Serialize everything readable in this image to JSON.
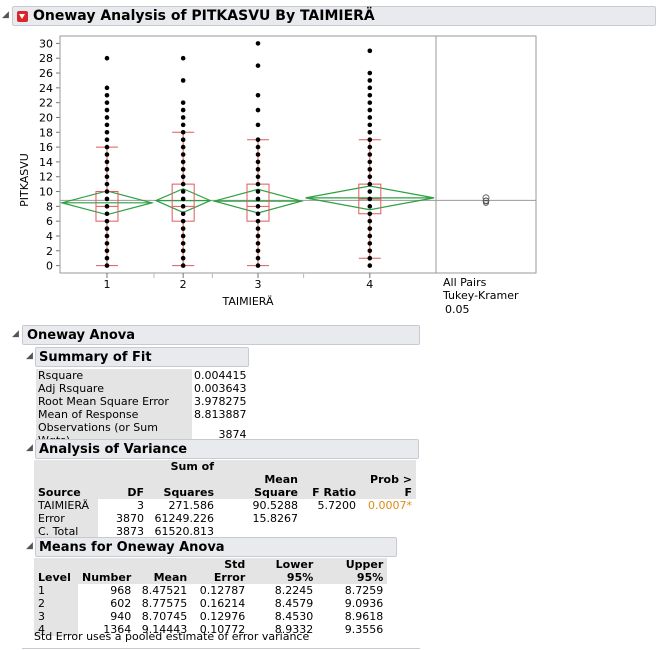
{
  "title": "Oneway Analysis of PITKASVU By TAIMIERÄ",
  "plot": {
    "ylabel": "PITKASVU",
    "xlabel": "TAIMIERÄ",
    "yticks": [
      "0",
      "2",
      "4",
      "6",
      "8",
      "10",
      "12",
      "14",
      "16",
      "18",
      "20",
      "22",
      "24",
      "26",
      "28",
      "30"
    ],
    "xticks": [
      "1",
      "2",
      "3",
      "4"
    ],
    "side_label_1": "All Pairs",
    "side_label_2": "Tukey-Kramer",
    "side_label_3": "0.05"
  },
  "chart_data": {
    "type": "scatter",
    "title": "",
    "xlabel": "TAIMIERÄ",
    "ylabel": "PITKASVU",
    "ylim": [
      -1,
      31
    ],
    "categories": [
      "1",
      "2",
      "3",
      "4"
    ],
    "group_sizes": [
      968,
      602,
      940,
      1364
    ],
    "points": [
      {
        "group": "1",
        "values": [
          0,
          1,
          2,
          3,
          4,
          5,
          6,
          7,
          8,
          9,
          10,
          11,
          12,
          13,
          14,
          15,
          16,
          17,
          18,
          19,
          20,
          21,
          22,
          23,
          24,
          28
        ]
      },
      {
        "group": "2",
        "values": [
          0,
          1,
          2,
          3,
          4,
          5,
          6,
          7,
          8,
          9,
          10,
          11,
          12,
          13,
          14,
          15,
          16,
          17,
          18,
          19,
          20,
          21,
          22,
          25,
          28
        ]
      },
      {
        "group": "3",
        "values": [
          0,
          1,
          2,
          3,
          4,
          5,
          6,
          7,
          8,
          9,
          10,
          11,
          12,
          13,
          14,
          15,
          16,
          17,
          19,
          21,
          23,
          27,
          30
        ]
      },
      {
        "group": "4",
        "values": [
          0,
          1,
          2,
          3,
          4,
          5,
          6,
          7,
          8,
          9,
          10,
          11,
          12,
          13,
          14,
          15,
          16,
          17,
          18,
          19,
          20,
          21,
          22,
          23,
          24,
          25,
          26,
          29
        ]
      }
    ],
    "boxplots": [
      {
        "group": "1",
        "q1": 6,
        "median": 8,
        "q3": 10,
        "whisker_low": 0,
        "whisker_high": 16
      },
      {
        "group": "2",
        "q1": 6,
        "median": 8,
        "q3": 11,
        "whisker_low": 0,
        "whisker_high": 18
      },
      {
        "group": "3",
        "q1": 6,
        "median": 8,
        "q3": 11,
        "whisker_low": 0,
        "whisker_high": 17
      },
      {
        "group": "4",
        "q1": 7,
        "median": 9,
        "q3": 11,
        "whisker_low": 1,
        "whisker_high": 17
      }
    ],
    "means": [
      8.47521,
      8.77575,
      8.70745,
      9.14443
    ],
    "grand_mean": 8.813887,
    "colors": {
      "points": "#000000",
      "box": "#e0585c",
      "diamond": "#2ea043",
      "grandmean": "#9a9a9a"
    }
  },
  "anova_header": "Oneway Anova",
  "summary_of_fit": {
    "title": "Summary of Fit",
    "rows": [
      {
        "label": "Rsquare",
        "value": "0.004415"
      },
      {
        "label": "Adj Rsquare",
        "value": "0.003643"
      },
      {
        "label": "Root Mean Square Error",
        "value": "3.978275"
      },
      {
        "label": "Mean of Response",
        "value": "8.813887"
      },
      {
        "label": "Observations (or Sum Wgts)",
        "value": "3874"
      }
    ]
  },
  "analysis_of_variance": {
    "title": "Analysis of Variance",
    "sum_of_label": "Sum of",
    "headers": [
      "Source",
      "DF",
      "Squares",
      "Mean Square",
      "F Ratio",
      "Prob > F"
    ],
    "rows": [
      {
        "source": "TAIMIERÄ",
        "df": "3",
        "ss": "271.586",
        "ms": "90.5288",
        "f": "5.7200",
        "p": "0.0007*"
      },
      {
        "source": "Error",
        "df": "3870",
        "ss": "61249.226",
        "ms": "15.8267",
        "f": "",
        "p": ""
      },
      {
        "source": "C. Total",
        "df": "3873",
        "ss": "61520.813",
        "ms": "",
        "f": "",
        "p": ""
      }
    ]
  },
  "means_for_oneway": {
    "title": "Means for Oneway Anova",
    "headers": [
      "Level",
      "Number",
      "Mean",
      "Std Error",
      "Lower 95%",
      "Upper 95%"
    ],
    "rows": [
      {
        "level": "1",
        "number": "968",
        "mean": "8.47521",
        "se": "0.12787",
        "lower": "8.2245",
        "upper": "8.7259"
      },
      {
        "level": "2",
        "number": "602",
        "mean": "8.77575",
        "se": "0.16214",
        "lower": "8.4579",
        "upper": "9.0936"
      },
      {
        "level": "3",
        "number": "940",
        "mean": "8.70745",
        "se": "0.12976",
        "lower": "8.4530",
        "upper": "8.9618"
      },
      {
        "level": "4",
        "number": "1364",
        "mean": "9.14443",
        "se": "0.10772",
        "lower": "8.9332",
        "upper": "9.3556"
      }
    ],
    "footnote": "Std Error uses a pooled estimate of error variance"
  }
}
